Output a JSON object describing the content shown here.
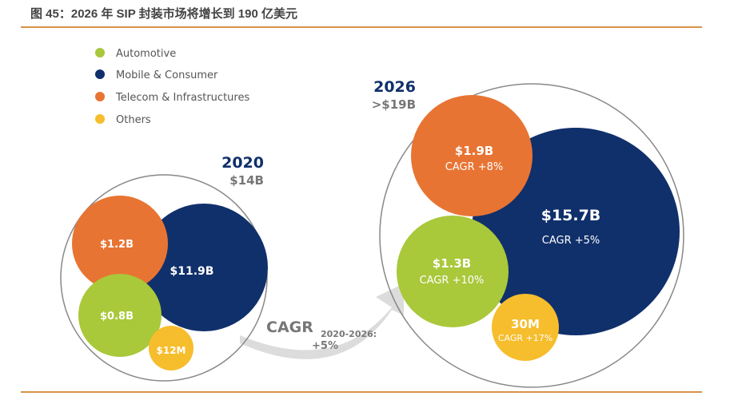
{
  "title": "图 45：2026 年 SIP 封装市场将增长到 190 亿美元",
  "colors": {
    "automotive": "#a9c83a",
    "mobile": "#10306b",
    "telecom": "#e87433",
    "others": "#f6bd2c",
    "rule": "#d9924a"
  },
  "legend": [
    {
      "label": "Automotive",
      "color": "#a9c83a"
    },
    {
      "label": "Mobile & Consumer",
      "color": "#10306b"
    },
    {
      "label": "Telecom & Infrastructures",
      "color": "#e87433"
    },
    {
      "label": "Others",
      "color": "#f6bd2c"
    }
  ],
  "y2020": {
    "year": "2020",
    "total": "$14B",
    "mobile": "$11.9B",
    "telecom": "$1.2B",
    "automotive": "$0.8B",
    "others": "$12M"
  },
  "y2026": {
    "year": "2026",
    "total": ">$19B",
    "mobile": "$15.7B",
    "mobile_cagr": "CAGR +5%",
    "telecom": "$1.9B",
    "telecom_cagr": "CAGR +8%",
    "automotive": "$1.3B",
    "automotive_cagr": "CAGR +10%",
    "others": "30M",
    "others_cagr": "CAGR +17%"
  },
  "arrow": {
    "label": "CAGR",
    "period": "2020-2026:",
    "value": "+5%"
  }
}
